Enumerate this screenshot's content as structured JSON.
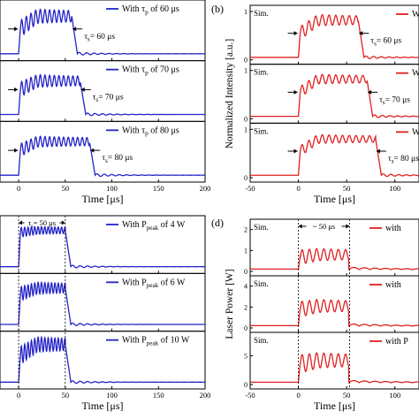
{
  "colors": {
    "blue": "#2323c8",
    "red": "#e02020",
    "axis": "#000000"
  },
  "chart_data": [
    {
      "id": "a",
      "type": "line",
      "color": "#2323c8",
      "xlim": [
        -20,
        200
      ],
      "xticks": [
        "0",
        "50",
        "100",
        "150",
        "200"
      ],
      "xlabel": "Time [μs]",
      "panel_label": "",
      "rows": [
        {
          "legend": "With τ",
          "legend_sub": "p",
          "legend_tail": " of 60 μs",
          "ann": "τ",
          "ann_sub": "s",
          "ann_tail": "= 60  μs",
          "pulse_end_us": 57,
          "step": 0.55,
          "final": 0.8,
          "ripple": 0.17
        },
        {
          "legend": "With τ",
          "legend_sub": "p",
          "legend_tail": " of 70 μs",
          "ann": "τ",
          "ann_sub": "s",
          "ann_tail": "= 70  μs",
          "pulse_end_us": 66,
          "step": 0.55,
          "final": 0.72,
          "ripple": 0.15
        },
        {
          "legend": "With τ",
          "legend_sub": "p",
          "legend_tail": " of 80 μs",
          "ann": "τ",
          "ann_sub": "s",
          "ann_tail": "= 80  μs",
          "pulse_end_us": 76,
          "step": 0.55,
          "final": 0.72,
          "ripple": 0.13
        }
      ]
    },
    {
      "id": "b",
      "type": "line",
      "color": "#e02020",
      "xlim": [
        -50,
        125
      ],
      "xticks": [
        "-50",
        "0",
        "50",
        "100"
      ],
      "xlabel": "Time [μs]",
      "ylabel": "Normalized Intensity [a.u.]",
      "panel_label": "(b)",
      "yticks": [
        "0",
        "1"
      ],
      "rows": [
        {
          "sim": "Sim.",
          "legend": "Wi",
          "ann": "τ",
          "ann_sub": "s",
          "ann_tail": "= 60  μs",
          "pulse_end_us": 62,
          "step": 0.55,
          "final": 0.82,
          "ripple": 0.14
        },
        {
          "sim": "Sim.",
          "legend": "W",
          "ann": "τ",
          "ann_sub": "s",
          "ann_tail": "= 70  μs",
          "pulse_end_us": 71,
          "step": 0.55,
          "final": 0.82,
          "ripple": 0.12
        },
        {
          "sim": "Sim.",
          "legend": "Wi",
          "ann": "τ",
          "ann_sub": "s",
          "ann_tail": "= 80  μs",
          "pulse_end_us": 80,
          "step": 0.55,
          "final": 0.8,
          "ripple": 0.11
        }
      ]
    },
    {
      "id": "c",
      "type": "line",
      "color": "#2323c8",
      "xlim": [
        -20,
        200
      ],
      "xticks": [
        "0",
        "50",
        "100",
        "150",
        "200"
      ],
      "xlabel": "Time [μs]",
      "panel_label": "",
      "top_ann": "τ",
      "top_ann_sub": "s",
      "top_ann_tail": "= 50  μs",
      "rows": [
        {
          "legend": "With P",
          "legend_sub": "peak",
          "legend_tail": " of 4 W",
          "pulse_end_us": 50,
          "step": 0.78,
          "final": 0.82,
          "ripple": 0.1
        },
        {
          "legend": "With P",
          "legend_sub": "peak",
          "legend_tail": " of 6 W",
          "pulse_end_us": 50,
          "step": 0.7,
          "final": 0.82,
          "ripple": 0.15
        },
        {
          "legend": "With P",
          "legend_sub": "peak",
          "legend_tail": " of 10 W",
          "pulse_end_us": 50,
          "step": 0.62,
          "final": 0.85,
          "ripple": 0.19
        }
      ]
    },
    {
      "id": "d",
      "type": "line",
      "color": "#e02020",
      "xlim": [
        -50,
        125
      ],
      "xticks": [
        "-50",
        "0",
        "50",
        "100"
      ],
      "xlabel": "Time [μs]",
      "ylabel": "Laser Power [W]",
      "panel_label": "(d)",
      "top_ann": "~ 50 μs",
      "rows": [
        {
          "sim": "Sim.",
          "legend": "with",
          "yticks": [
            "0",
            "1",
            "2"
          ],
          "ymax": 2.2,
          "peak_w": 0.8,
          "ripple_w": 0.35
        },
        {
          "sim": "Sim.",
          "legend": "with",
          "yticks": [
            "0",
            "2",
            "4"
          ],
          "ymax": 4.4,
          "peak_w": 2.1,
          "ripple_w": 0.75
        },
        {
          "sim": "Sim.",
          "legend": "with P",
          "yticks": [
            "0",
            "5"
          ],
          "ymax": 8.0,
          "peak_w": 4.2,
          "ripple_w": 1.6
        }
      ]
    }
  ]
}
